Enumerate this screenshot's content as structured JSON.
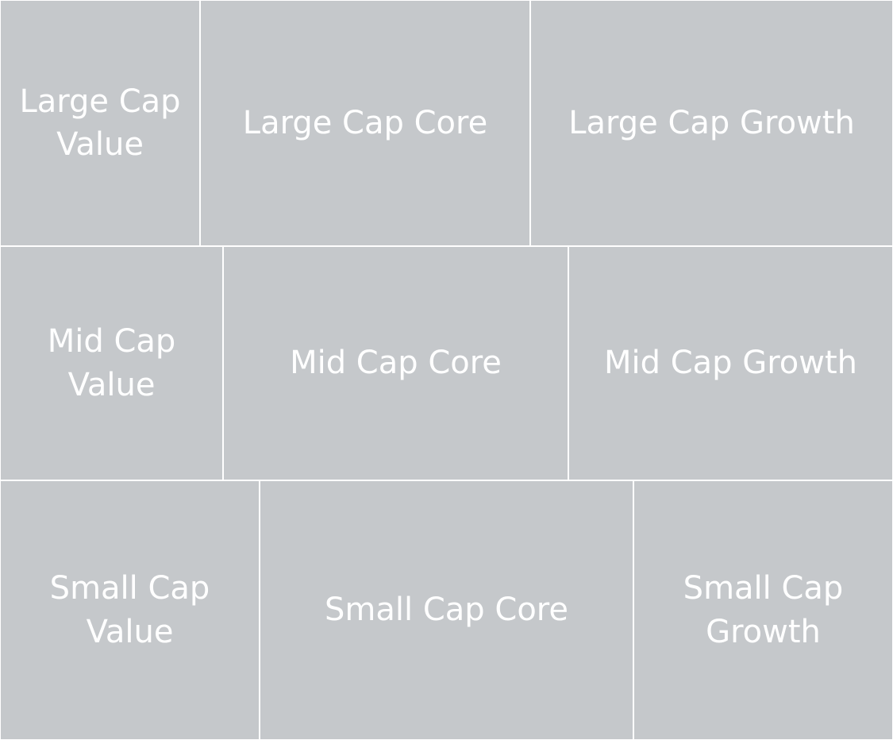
{
  "chart_data": {
    "type": "treemap",
    "title": "",
    "tile_color": "#c5c8cb",
    "label_color": "#ffffff",
    "rows": [
      {
        "name": "Large Cap",
        "items": [
          {
            "label": "Large Cap Value",
            "value": 0.224
          },
          {
            "label": "Large Cap Core",
            "value": 0.37
          },
          {
            "label": "Large Cap Growth",
            "value": 0.406
          }
        ]
      },
      {
        "name": "Mid Cap",
        "items": [
          {
            "label": "Mid Cap Value",
            "value": 0.25
          },
          {
            "label": "Mid Cap Core",
            "value": 0.387
          },
          {
            "label": "Mid Cap Growth",
            "value": 0.363
          }
        ]
      },
      {
        "name": "Small Cap",
        "items": [
          {
            "label": "Small Cap Value",
            "value": 0.291
          },
          {
            "label": "Small Cap Core",
            "value": 0.419
          },
          {
            "label": "Small Cap Growth",
            "value": 0.29
          }
        ]
      }
    ],
    "row_values": [
      0.333,
      0.317,
      0.35
    ]
  }
}
